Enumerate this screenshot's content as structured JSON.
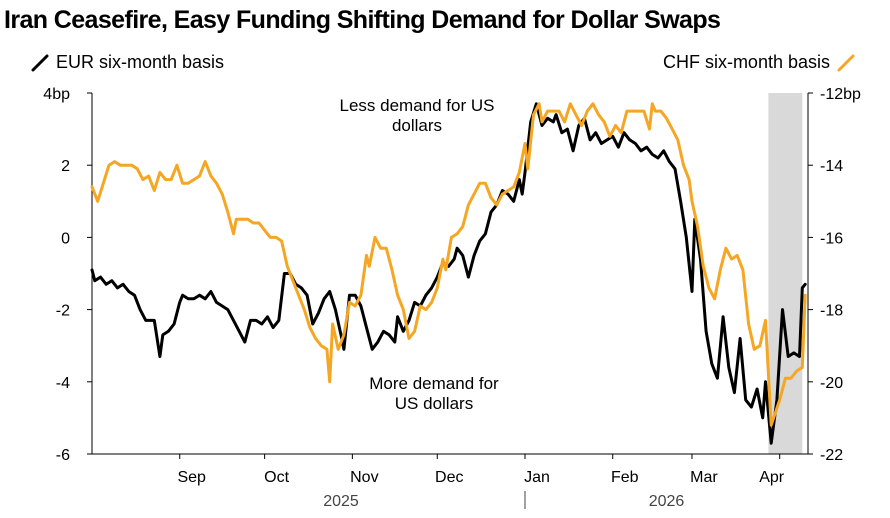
{
  "title": "Iran Ceasefire, Easy Funding Shifting Demand for Dollar Swaps",
  "colors": {
    "eur": "#000000",
    "chf": "#f5a623",
    "shade": "#d9d9d9",
    "axis": "#000000"
  },
  "chart_data": {
    "type": "line",
    "title": "Iran Ceasefire, Easy Funding Shifting Demand for Dollar Swaps",
    "legend": [
      "EUR six-month basis",
      "CHF six-month basis"
    ],
    "legend_placement": "top",
    "x_ticks": [
      "Sep",
      "Oct",
      "Nov",
      "Dec",
      "Jan",
      "Feb",
      "Mar",
      "Apr"
    ],
    "x_years": [
      "2025",
      "2026"
    ],
    "left_axis": {
      "ticks": [
        "4bp",
        "2",
        "0",
        "-2",
        "-4",
        "-6"
      ],
      "ylim": [
        -6,
        4
      ],
      "series": "EUR six-month basis"
    },
    "right_axis": {
      "ticks": [
        "-12bp",
        "-14",
        "-16",
        "-18",
        "-20",
        "-22"
      ],
      "ylim": [
        -22,
        -12
      ],
      "series": "CHF six-month basis"
    },
    "shaded_region": [
      "2026-03-28",
      "2026-04-09"
    ],
    "annotations": {
      "top": [
        "Less demand for US",
        "dollars"
      ],
      "bottom": [
        "More demand for",
        "US dollars"
      ]
    },
    "series": [
      {
        "name": "EUR six-month basis",
        "axis": "left",
        "points": [
          [
            "2025-08-01",
            -0.9
          ],
          [
            "2025-08-02",
            -1.2
          ],
          [
            "2025-08-04",
            -1.1
          ],
          [
            "2025-08-05",
            -1.2
          ],
          [
            "2025-08-06",
            -1.3
          ],
          [
            "2025-08-08",
            -1.2
          ],
          [
            "2025-08-10",
            -1.4
          ],
          [
            "2025-08-12",
            -1.3
          ],
          [
            "2025-08-14",
            -1.5
          ],
          [
            "2025-08-16",
            -1.6
          ],
          [
            "2025-08-18",
            -2.0
          ],
          [
            "2025-08-20",
            -2.3
          ],
          [
            "2025-08-23",
            -2.3
          ],
          [
            "2025-08-25",
            -3.3
          ],
          [
            "2025-08-26",
            -2.7
          ],
          [
            "2025-08-28",
            -2.6
          ],
          [
            "2025-08-30",
            -2.4
          ],
          [
            "2025-09-01",
            -1.8
          ],
          [
            "2025-09-02",
            -1.6
          ],
          [
            "2025-09-04",
            -1.7
          ],
          [
            "2025-09-06",
            -1.7
          ],
          [
            "2025-09-08",
            -1.6
          ],
          [
            "2025-09-10",
            -1.7
          ],
          [
            "2025-09-12",
            -1.5
          ],
          [
            "2025-09-14",
            -1.8
          ],
          [
            "2025-09-16",
            -1.9
          ],
          [
            "2025-09-18",
            -2.0
          ],
          [
            "2025-09-20",
            -2.3
          ],
          [
            "2025-09-22",
            -2.6
          ],
          [
            "2025-09-24",
            -2.9
          ],
          [
            "2025-09-26",
            -2.3
          ],
          [
            "2025-09-28",
            -2.3
          ],
          [
            "2025-09-30",
            -2.4
          ],
          [
            "2025-10-02",
            -2.2
          ],
          [
            "2025-10-04",
            -2.5
          ],
          [
            "2025-10-06",
            -2.3
          ],
          [
            "2025-10-08",
            -1.0
          ],
          [
            "2025-10-10",
            -1.0
          ],
          [
            "2025-10-12",
            -1.3
          ],
          [
            "2025-10-14",
            -1.4
          ],
          [
            "2025-10-16",
            -1.6
          ],
          [
            "2025-10-18",
            -2.4
          ],
          [
            "2025-10-20",
            -2.1
          ],
          [
            "2025-10-22",
            -1.7
          ],
          [
            "2025-10-24",
            -1.5
          ],
          [
            "2025-10-26",
            -2.0
          ],
          [
            "2025-10-28",
            -2.7
          ],
          [
            "2025-10-29",
            -3.1
          ],
          [
            "2025-10-31",
            -1.6
          ],
          [
            "2025-11-02",
            -1.6
          ],
          [
            "2025-11-04",
            -1.9
          ],
          [
            "2025-11-06",
            -2.5
          ],
          [
            "2025-11-08",
            -3.1
          ],
          [
            "2025-11-10",
            -2.9
          ],
          [
            "2025-11-12",
            -2.6
          ],
          [
            "2025-11-14",
            -2.7
          ],
          [
            "2025-11-16",
            -2.9
          ],
          [
            "2025-11-17",
            -2.2
          ],
          [
            "2025-11-19",
            -2.6
          ],
          [
            "2025-11-21",
            -2.3
          ],
          [
            "2025-11-23",
            -1.8
          ],
          [
            "2025-11-25",
            -1.9
          ],
          [
            "2025-11-27",
            -1.6
          ],
          [
            "2025-11-29",
            -1.4
          ],
          [
            "2025-12-01",
            -1.1
          ],
          [
            "2025-12-03",
            -0.7
          ],
          [
            "2025-12-05",
            -0.8
          ],
          [
            "2025-12-07",
            -0.6
          ],
          [
            "2025-12-08",
            -0.3
          ],
          [
            "2025-12-10",
            -0.5
          ],
          [
            "2025-12-12",
            -1.1
          ],
          [
            "2025-12-14",
            -0.5
          ],
          [
            "2025-12-16",
            -0.1
          ],
          [
            "2025-12-18",
            0.1
          ],
          [
            "2025-12-20",
            0.7
          ],
          [
            "2025-12-22",
            0.9
          ],
          [
            "2025-12-24",
            1.3
          ],
          [
            "2025-12-26",
            1.2
          ],
          [
            "2025-12-28",
            1.0
          ],
          [
            "2025-12-30",
            1.6
          ],
          [
            "2025-12-31",
            1.2
          ],
          [
            "2026-01-01",
            1.8
          ],
          [
            "2026-01-03",
            3.2
          ],
          [
            "2026-01-05",
            3.7
          ],
          [
            "2026-01-07",
            3.1
          ],
          [
            "2026-01-09",
            3.3
          ],
          [
            "2026-01-11",
            3.2
          ],
          [
            "2026-01-12",
            3.4
          ],
          [
            "2026-01-14",
            2.9
          ],
          [
            "2026-01-16",
            3.0
          ],
          [
            "2026-01-18",
            2.4
          ],
          [
            "2026-01-20",
            3.1
          ],
          [
            "2026-01-22",
            3.3
          ],
          [
            "2026-01-24",
            2.7
          ],
          [
            "2026-01-26",
            2.9
          ],
          [
            "2026-01-28",
            2.6
          ],
          [
            "2026-01-30",
            2.7
          ],
          [
            "2026-02-01",
            2.8
          ],
          [
            "2026-02-03",
            2.5
          ],
          [
            "2026-02-05",
            2.9
          ],
          [
            "2026-02-07",
            2.7
          ],
          [
            "2026-02-09",
            2.6
          ],
          [
            "2026-02-11",
            2.4
          ],
          [
            "2026-02-13",
            2.5
          ],
          [
            "2026-02-15",
            2.3
          ],
          [
            "2026-02-17",
            2.2
          ],
          [
            "2026-02-19",
            2.4
          ],
          [
            "2026-02-21",
            2.1
          ],
          [
            "2026-02-23",
            1.9
          ],
          [
            "2026-02-25",
            1.0
          ],
          [
            "2026-02-27",
            0.0
          ],
          [
            "2026-03-01",
            -1.5
          ],
          [
            "2026-03-02",
            0.5
          ],
          [
            "2026-03-04",
            -0.6
          ],
          [
            "2026-03-06",
            -2.6
          ],
          [
            "2026-03-08",
            -3.5
          ],
          [
            "2026-03-10",
            -3.9
          ],
          [
            "2026-03-12",
            -2.2
          ],
          [
            "2026-03-14",
            -3.6
          ],
          [
            "2026-03-16",
            -4.3
          ],
          [
            "2026-03-18",
            -2.8
          ],
          [
            "2026-03-20",
            -4.5
          ],
          [
            "2026-03-22",
            -4.7
          ],
          [
            "2026-03-24",
            -4.2
          ],
          [
            "2026-03-26",
            -5.0
          ],
          [
            "2026-03-27",
            -4.0
          ],
          [
            "2026-03-29",
            -5.7
          ],
          [
            "2026-03-31",
            -4.5
          ],
          [
            "2026-04-02",
            -2.0
          ],
          [
            "2026-04-04",
            -3.3
          ],
          [
            "2026-04-06",
            -3.2
          ],
          [
            "2026-04-08",
            -3.3
          ],
          [
            "2026-04-09",
            -1.4
          ],
          [
            "2026-04-10",
            -1.3
          ]
        ]
      },
      {
        "name": "CHF six-month basis",
        "axis": "right",
        "points": [
          [
            "2025-08-01",
            -14.6
          ],
          [
            "2025-08-03",
            -15.0
          ],
          [
            "2025-08-05",
            -14.5
          ],
          [
            "2025-08-07",
            -14.0
          ],
          [
            "2025-08-09",
            -13.9
          ],
          [
            "2025-08-11",
            -14.0
          ],
          [
            "2025-08-13",
            -14.0
          ],
          [
            "2025-08-15",
            -14.0
          ],
          [
            "2025-08-17",
            -14.1
          ],
          [
            "2025-08-19",
            -14.4
          ],
          [
            "2025-08-21",
            -14.3
          ],
          [
            "2025-08-23",
            -14.7
          ],
          [
            "2025-08-25",
            -14.2
          ],
          [
            "2025-08-27",
            -14.4
          ],
          [
            "2025-08-29",
            -14.4
          ],
          [
            "2025-08-31",
            -14.0
          ],
          [
            "2025-09-02",
            -14.5
          ],
          [
            "2025-09-04",
            -14.5
          ],
          [
            "2025-09-06",
            -14.4
          ],
          [
            "2025-09-08",
            -14.3
          ],
          [
            "2025-09-10",
            -13.9
          ],
          [
            "2025-09-12",
            -14.3
          ],
          [
            "2025-09-14",
            -14.5
          ],
          [
            "2025-09-16",
            -14.8
          ],
          [
            "2025-09-18",
            -15.3
          ],
          [
            "2025-09-20",
            -15.9
          ],
          [
            "2025-09-21",
            -15.5
          ],
          [
            "2025-09-23",
            -15.5
          ],
          [
            "2025-09-25",
            -15.5
          ],
          [
            "2025-09-27",
            -15.6
          ],
          [
            "2025-09-29",
            -15.6
          ],
          [
            "2025-10-01",
            -15.8
          ],
          [
            "2025-10-03",
            -16.0
          ],
          [
            "2025-10-05",
            -16.0
          ],
          [
            "2025-10-07",
            -16.1
          ],
          [
            "2025-10-09",
            -16.8
          ],
          [
            "2025-10-11",
            -17.2
          ],
          [
            "2025-10-13",
            -17.6
          ],
          [
            "2025-10-15",
            -18.0
          ],
          [
            "2025-10-17",
            -18.5
          ],
          [
            "2025-10-19",
            -18.8
          ],
          [
            "2025-10-21",
            -19.0
          ],
          [
            "2025-10-23",
            -19.1
          ],
          [
            "2025-10-24",
            -20.0
          ],
          [
            "2025-10-25",
            -18.4
          ],
          [
            "2025-10-27",
            -19.1
          ],
          [
            "2025-10-29",
            -18.7
          ],
          [
            "2025-10-31",
            -17.8
          ],
          [
            "2025-11-02",
            -17.9
          ],
          [
            "2025-11-04",
            -17.6
          ],
          [
            "2025-11-06",
            -16.5
          ],
          [
            "2025-11-07",
            -16.8
          ],
          [
            "2025-11-09",
            -16.0
          ],
          [
            "2025-11-11",
            -16.3
          ],
          [
            "2025-11-13",
            -16.3
          ],
          [
            "2025-11-15",
            -16.9
          ],
          [
            "2025-11-17",
            -17.6
          ],
          [
            "2025-11-19",
            -18.0
          ],
          [
            "2025-11-21",
            -18.8
          ],
          [
            "2025-11-23",
            -18.6
          ],
          [
            "2025-11-25",
            -17.9
          ],
          [
            "2025-11-27",
            -18.0
          ],
          [
            "2025-11-29",
            -17.8
          ],
          [
            "2025-12-01",
            -17.4
          ],
          [
            "2025-12-03",
            -16.6
          ],
          [
            "2025-12-04",
            -16.9
          ],
          [
            "2025-12-06",
            -16.0
          ],
          [
            "2025-12-08",
            -15.9
          ],
          [
            "2025-12-10",
            -15.7
          ],
          [
            "2025-12-12",
            -15.1
          ],
          [
            "2025-12-14",
            -14.8
          ],
          [
            "2025-12-16",
            -14.5
          ],
          [
            "2025-12-18",
            -14.5
          ],
          [
            "2025-12-20",
            -14.9
          ],
          [
            "2025-12-22",
            -15.1
          ],
          [
            "2025-12-24",
            -14.8
          ],
          [
            "2025-12-26",
            -14.7
          ],
          [
            "2025-12-28",
            -14.6
          ],
          [
            "2025-12-30",
            -14.2
          ],
          [
            "2026-01-01",
            -13.4
          ],
          [
            "2026-01-02",
            -14.1
          ],
          [
            "2026-01-04",
            -12.6
          ],
          [
            "2026-01-06",
            -12.3
          ],
          [
            "2026-01-07",
            -12.8
          ],
          [
            "2026-01-09",
            -12.5
          ],
          [
            "2026-01-11",
            -12.5
          ],
          [
            "2026-01-13",
            -12.5
          ],
          [
            "2026-01-15",
            -12.8
          ],
          [
            "2026-01-17",
            -12.3
          ],
          [
            "2026-01-19",
            -12.6
          ],
          [
            "2026-01-21",
            -12.9
          ],
          [
            "2026-01-23",
            -12.5
          ],
          [
            "2026-01-25",
            -12.3
          ],
          [
            "2026-01-27",
            -12.6
          ],
          [
            "2026-01-29",
            -12.8
          ],
          [
            "2026-01-31",
            -13.2
          ],
          [
            "2026-02-02",
            -12.9
          ],
          [
            "2026-02-04",
            -13.1
          ],
          [
            "2026-02-06",
            -12.5
          ],
          [
            "2026-02-08",
            -12.5
          ],
          [
            "2026-02-10",
            -12.5
          ],
          [
            "2026-02-12",
            -12.5
          ],
          [
            "2026-02-14",
            -13.0
          ],
          [
            "2026-02-15",
            -12.3
          ],
          [
            "2026-02-16",
            -12.5
          ],
          [
            "2026-02-18",
            -12.5
          ],
          [
            "2026-02-20",
            -12.7
          ],
          [
            "2026-02-22",
            -13.0
          ],
          [
            "2026-02-24",
            -13.3
          ],
          [
            "2026-02-26",
            -14.0
          ],
          [
            "2026-02-28",
            -14.4
          ],
          [
            "2026-03-01",
            -15.0
          ],
          [
            "2026-03-03",
            -15.7
          ],
          [
            "2026-03-05",
            -16.8
          ],
          [
            "2026-03-07",
            -17.4
          ],
          [
            "2026-03-09",
            -17.7
          ],
          [
            "2026-03-11",
            -16.9
          ],
          [
            "2026-03-13",
            -16.3
          ],
          [
            "2026-03-15",
            -16.6
          ],
          [
            "2026-03-17",
            -16.5
          ],
          [
            "2026-03-19",
            -16.9
          ],
          [
            "2026-03-21",
            -18.4
          ],
          [
            "2026-03-23",
            -19.1
          ],
          [
            "2026-03-25",
            -19.0
          ],
          [
            "2026-03-27",
            -18.3
          ],
          [
            "2026-03-29",
            -21.2
          ],
          [
            "2026-04-01",
            -20.5
          ],
          [
            "2026-04-03",
            -19.9
          ],
          [
            "2026-04-05",
            -19.9
          ],
          [
            "2026-04-07",
            -19.7
          ],
          [
            "2026-04-09",
            -19.6
          ],
          [
            "2026-04-10",
            -17.6
          ]
        ]
      }
    ]
  }
}
